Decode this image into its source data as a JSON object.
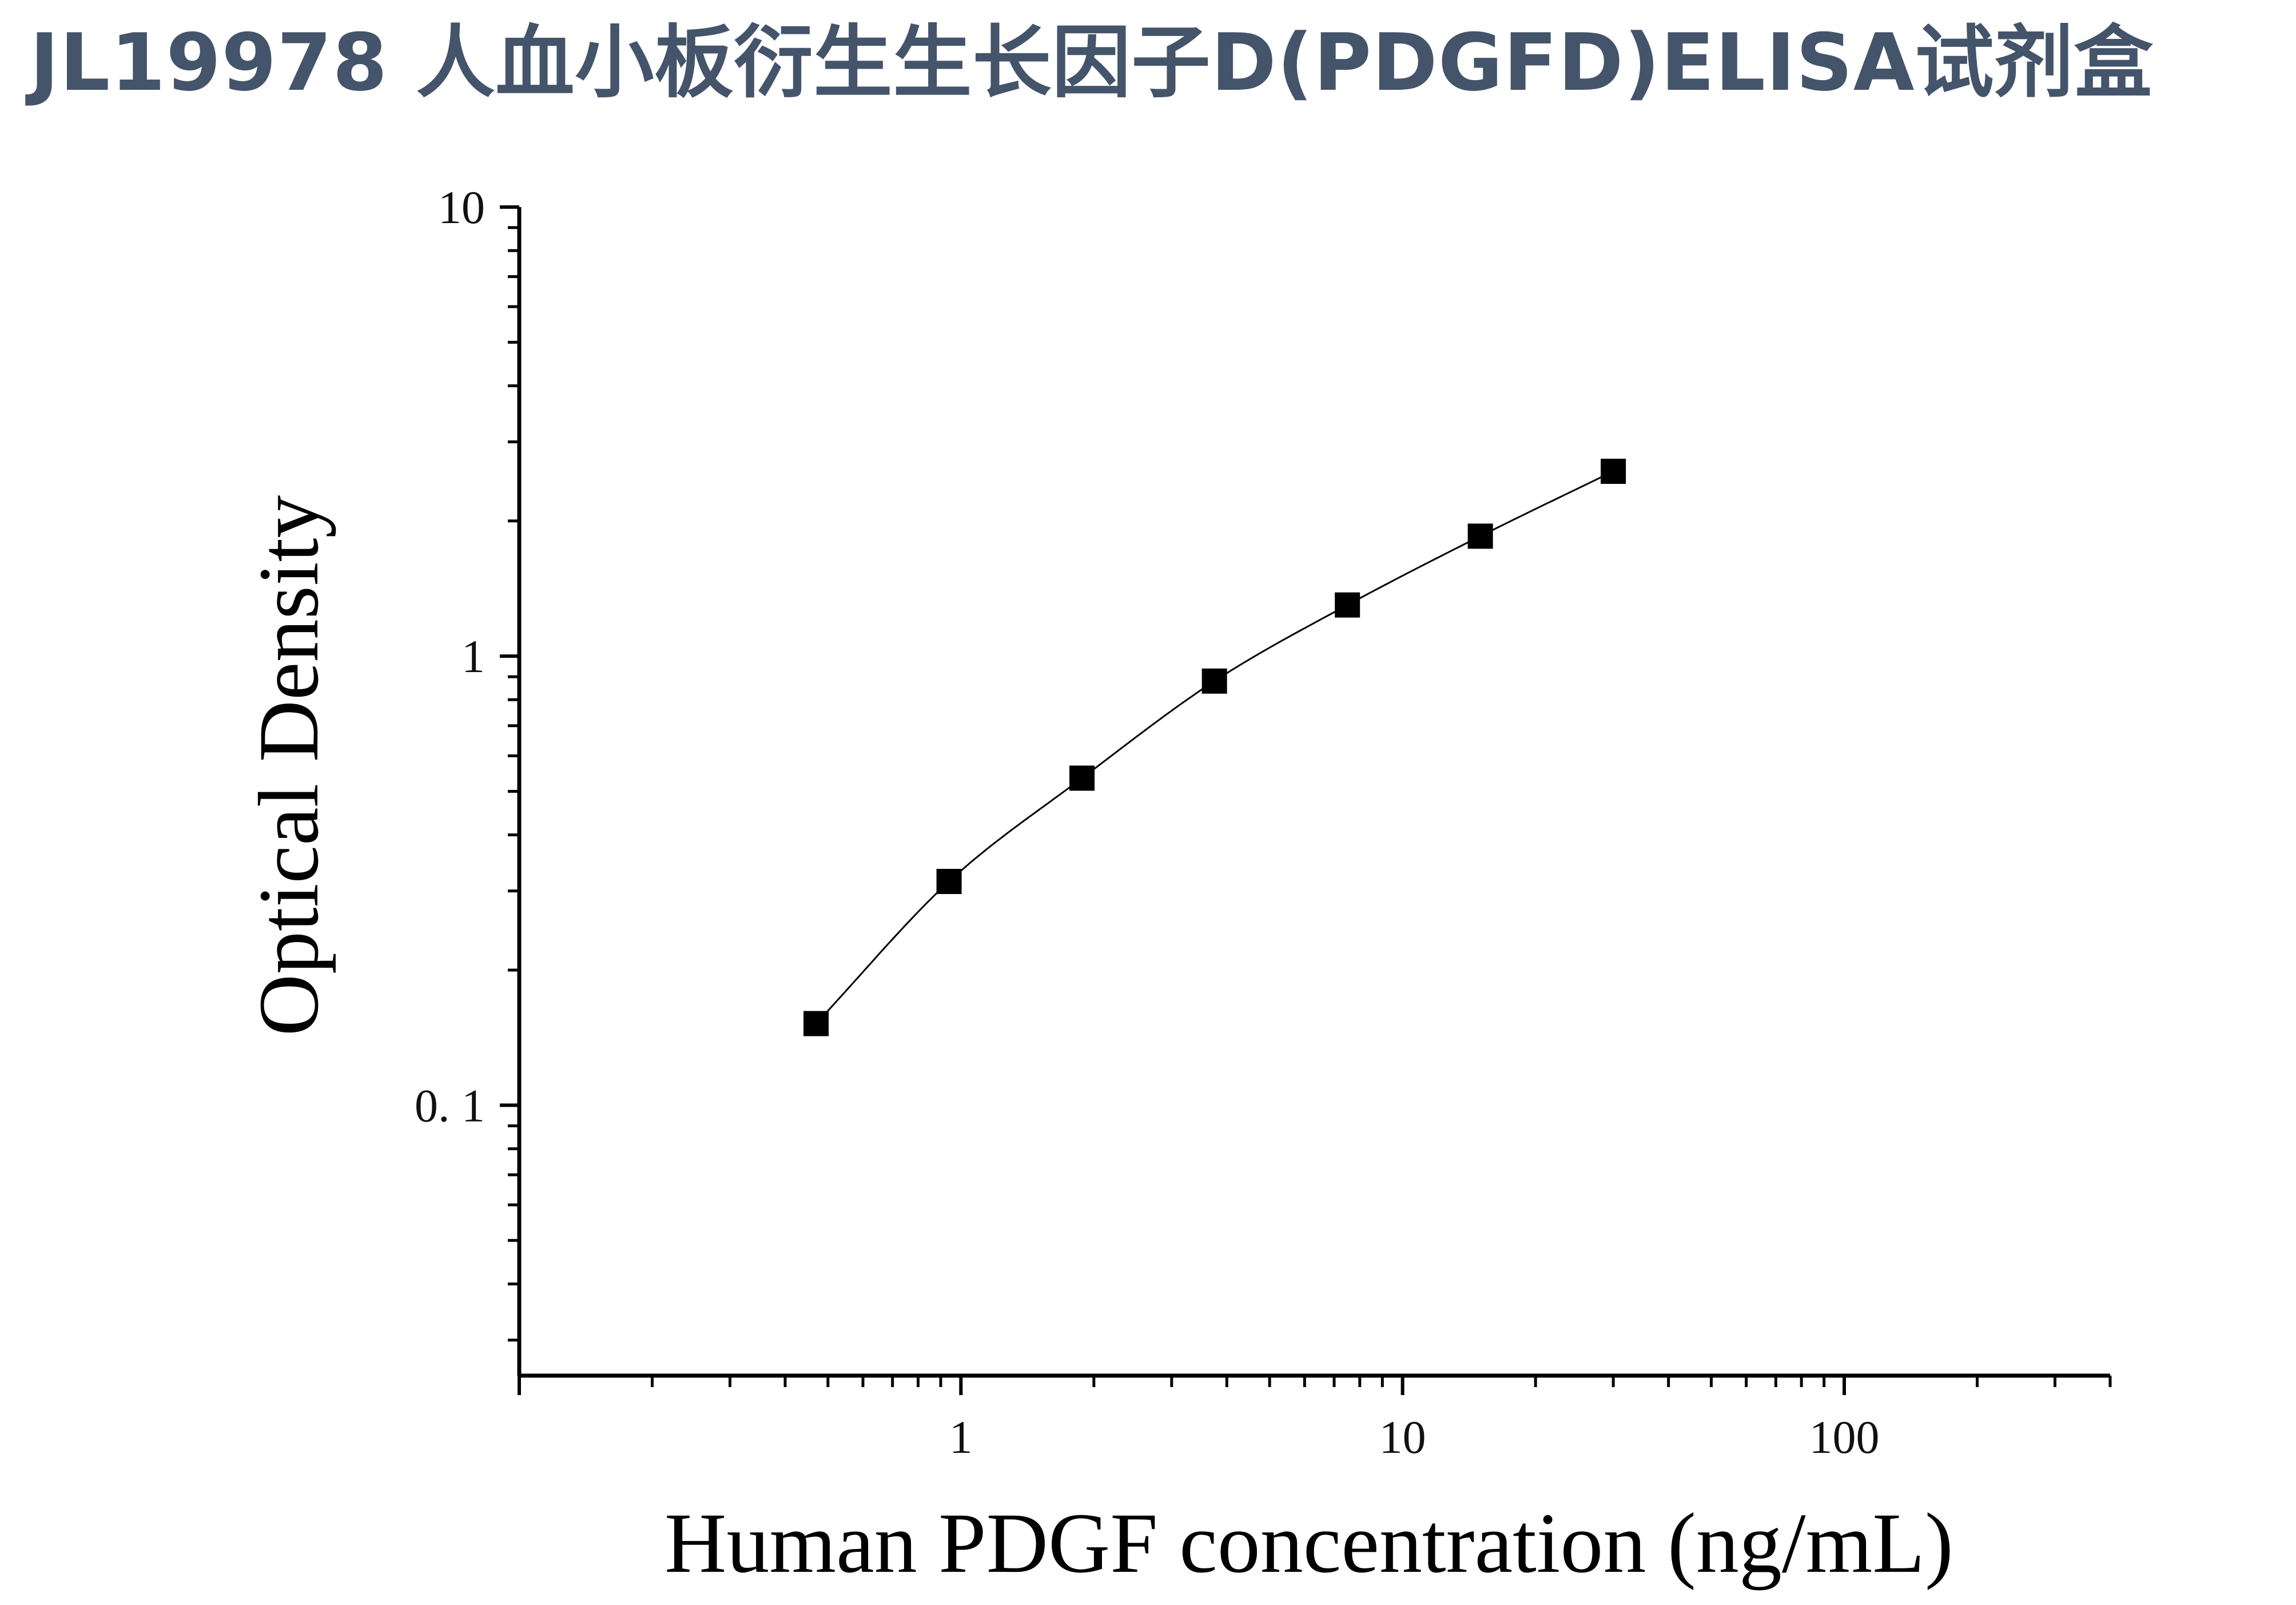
{
  "page": {
    "title": "JL19978 人血小板衍生生长因子D(PDGFD)ELISA试剂盒"
  },
  "chart_data": {
    "type": "scatter",
    "title": "",
    "xlabel": "Human PDGF concentration (ng/mL)",
    "ylabel": "Optical Density",
    "xscale": "log",
    "yscale": "log",
    "xlim": [
      0.1,
      400
    ],
    "ylim": [
      0.025,
      10
    ],
    "x_tick_labels": [
      {
        "value": 1,
        "label": "1"
      },
      {
        "value": 10,
        "label": "10"
      },
      {
        "value": 100,
        "label": "100"
      }
    ],
    "y_tick_labels": [
      {
        "value": 0.1,
        "label": "0. 1"
      },
      {
        "value": 1,
        "label": "1"
      },
      {
        "value": 10,
        "label": "10"
      }
    ],
    "grid": false,
    "legend": "none",
    "series": [
      {
        "marker": "square",
        "line": "smooth fitted curve",
        "color": "#000000",
        "x": [
          0.47,
          0.94,
          1.88,
          3.75,
          7.5,
          15,
          30
        ],
        "y": [
          0.152,
          0.315,
          0.535,
          0.88,
          1.3,
          1.85,
          2.58
        ]
      }
    ]
  }
}
